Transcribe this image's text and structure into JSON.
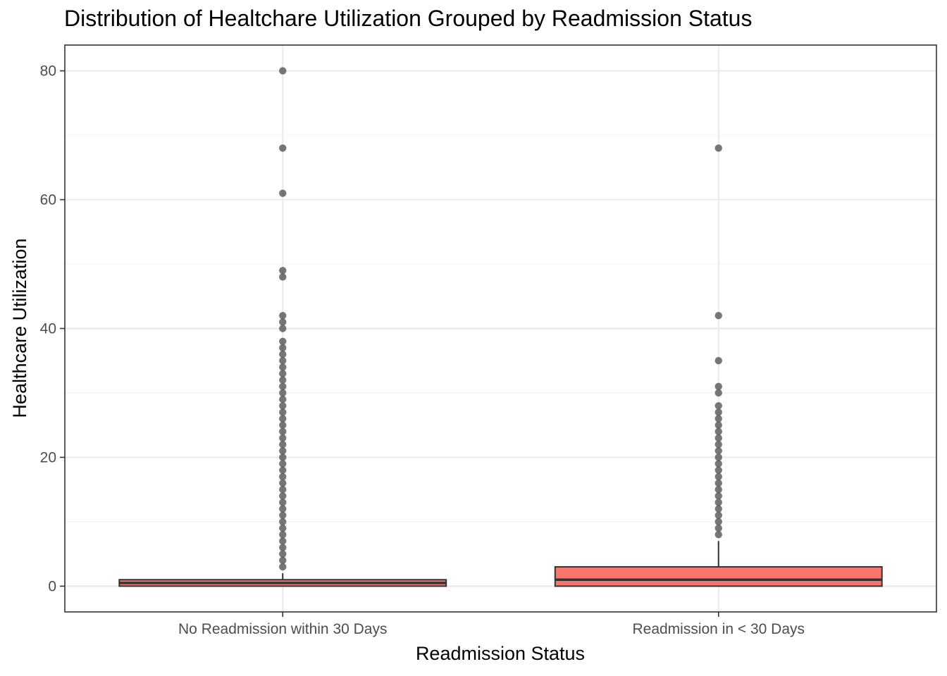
{
  "chart_data": {
    "type": "boxplot",
    "title": "Distribution of Healtchare Utilization Grouped by Readmission Status",
    "xlabel": "Readmission Status",
    "ylabel": "Healthcare Utilization",
    "ylim": [
      -4,
      84
    ],
    "yticks": [
      0,
      20,
      40,
      60,
      80
    ],
    "grid": true,
    "legend": "none",
    "colors": {
      "box_fill": "#F8766D",
      "box_stroke": "#333333",
      "outlier": "#555555",
      "grid_major": "#ebebeb",
      "grid_minor": "#f3f3f3"
    },
    "groups": [
      {
        "category": "No Readmission within 30 Days",
        "q1": 0,
        "median": 0.5,
        "q3": 1,
        "whisker_low": 0,
        "whisker_high": 2,
        "outliers": [
          3,
          4,
          5,
          6,
          7,
          8,
          9,
          10,
          11,
          12,
          13,
          14,
          15,
          16,
          17,
          18,
          19,
          20,
          21,
          22,
          23,
          24,
          25,
          26,
          27,
          28,
          29,
          30,
          31,
          32,
          33,
          34,
          35,
          36,
          37,
          38,
          40,
          41,
          42,
          48,
          49,
          61,
          68,
          80
        ]
      },
      {
        "category": "Readmission in < 30 Days",
        "q1": 0,
        "median": 1,
        "q3": 3,
        "whisker_low": 0,
        "whisker_high": 7,
        "outliers": [
          8,
          9,
          10,
          11,
          12,
          13,
          14,
          15,
          16,
          17,
          18,
          19,
          20,
          21,
          22,
          23,
          24,
          25,
          26,
          27,
          28,
          30,
          31,
          35,
          42,
          68
        ]
      }
    ]
  }
}
